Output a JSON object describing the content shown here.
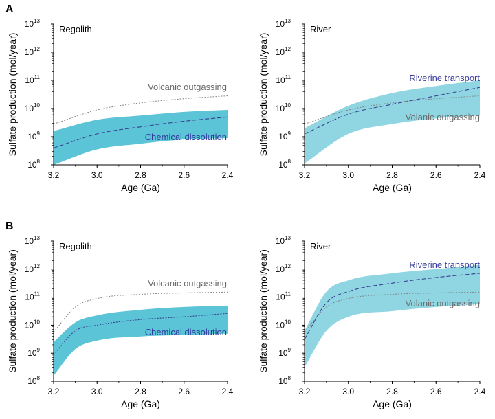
{
  "figure": {
    "panel_letters": [
      "A",
      "B"
    ],
    "ylabel": "Sulfate production (mol/year)",
    "xlabel": "Age (Ga)",
    "ytick_base": "10",
    "colors": {
      "band_regolith": "#5bc4d6",
      "band_river": "#8fd6e2",
      "dissolution_line": "#3a3f8f",
      "volcanic_line": "#808080",
      "riverine_text": "#3a3f9c",
      "dissolution_text": "#2f3a9c",
      "outgassing_text": "#6a6a6a"
    }
  },
  "chart_data": [
    {
      "panel": "A",
      "title": "Regolith",
      "type": "area",
      "x_reversed": true,
      "xlim": [
        3.2,
        2.4
      ],
      "ylim_log10": [
        8,
        13
      ],
      "yscale": "log",
      "xticks": [
        "3.2",
        "3.0",
        "2.8",
        "2.6",
        "2.4"
      ],
      "yticks_exp": [
        "8",
        "9",
        "10",
        "11",
        "12",
        "13"
      ],
      "x": [
        3.2,
        3.0,
        2.8,
        2.6,
        2.4
      ],
      "band": {
        "lower_log10": [
          8.0,
          8.55,
          8.75,
          8.9,
          8.95
        ],
        "upper_log10": [
          9.2,
          9.6,
          9.75,
          9.88,
          9.95
        ]
      },
      "series": [
        {
          "name": "Chemical dissolution",
          "style": "dashed",
          "log10": [
            8.6,
            9.1,
            9.35,
            9.55,
            9.7
          ]
        },
        {
          "name": "Volcanic outgassing",
          "style": "dotted",
          "log10": [
            9.45,
            9.95,
            10.2,
            10.35,
            10.45
          ]
        }
      ]
    },
    {
      "panel": "A",
      "title": "River",
      "type": "area",
      "x_reversed": true,
      "xlim": [
        3.2,
        2.4
      ],
      "ylim_log10": [
        8,
        13
      ],
      "yscale": "log",
      "xticks": [
        "3.2",
        "3.0",
        "2.8",
        "2.6",
        "2.4"
      ],
      "yticks_exp": [
        "8",
        "9",
        "10",
        "11",
        "12",
        "13"
      ],
      "x": [
        3.2,
        3.0,
        2.8,
        2.6,
        2.4
      ],
      "band": {
        "lower_log10": [
          8.05,
          9.1,
          9.45,
          9.65,
          9.75
        ],
        "upper_log10": [
          9.3,
          10.1,
          10.55,
          10.8,
          11.0
        ]
      },
      "series": [
        {
          "name": "Riverine transport",
          "style": "dashed",
          "log10": [
            9.1,
            9.8,
            10.15,
            10.45,
            10.75
          ]
        },
        {
          "name": "Volanic outgassing",
          "style": "dotted",
          "log10": [
            9.45,
            9.95,
            10.2,
            10.35,
            10.45
          ]
        }
      ]
    },
    {
      "panel": "B",
      "title": "Regolith",
      "type": "area",
      "x_reversed": true,
      "xlim": [
        3.2,
        2.4
      ],
      "ylim_log10": [
        8,
        13
      ],
      "yscale": "log",
      "xticks": [
        "3.2",
        "3.0",
        "2.8",
        "2.6",
        "2.4"
      ],
      "yticks_exp": [
        "8",
        "9",
        "10",
        "11",
        "12",
        "13"
      ],
      "x": [
        3.2,
        3.1,
        3.0,
        2.8,
        2.6,
        2.4
      ],
      "band": {
        "lower_log10": [
          8.2,
          9.15,
          9.45,
          9.6,
          9.65,
          9.7
        ],
        "upper_log10": [
          9.4,
          10.1,
          10.35,
          10.55,
          10.65,
          10.7
        ]
      },
      "series": [
        {
          "name": "Chemical dissolution",
          "style": "dotted",
          "log10": [
            8.95,
            9.8,
            10.0,
            10.2,
            10.3,
            10.42
          ]
        },
        {
          "name": "Volcanic outgassing",
          "style": "dotted",
          "log10": [
            9.75,
            10.65,
            10.95,
            11.1,
            11.15,
            11.18
          ]
        }
      ]
    },
    {
      "panel": "B",
      "title": "River",
      "type": "area",
      "x_reversed": true,
      "xlim": [
        3.2,
        2.4
      ],
      "ylim_log10": [
        8,
        13
      ],
      "yscale": "log",
      "xticks": [
        "3.2",
        "3.0",
        "2.8",
        "2.6",
        "2.4"
      ],
      "yticks_exp": [
        "8",
        "9",
        "10",
        "11",
        "12",
        "13"
      ],
      "x": [
        3.2,
        3.1,
        3.0,
        2.8,
        2.6,
        2.4
      ],
      "band": {
        "lower_log10": [
          8.5,
          9.8,
          10.3,
          10.5,
          10.65,
          10.75
        ],
        "upper_log10": [
          9.8,
          11.2,
          11.6,
          11.85,
          12.0,
          12.15
        ]
      },
      "series": [
        {
          "name": "Riverine transport",
          "style": "dashed",
          "log10": [
            9.5,
            10.8,
            11.2,
            11.5,
            11.7,
            11.85
          ]
        },
        {
          "name": "Volanic outgassing",
          "style": "dotted",
          "log10": [
            9.75,
            10.65,
            10.95,
            11.1,
            11.15,
            11.18
          ]
        }
      ]
    }
  ]
}
